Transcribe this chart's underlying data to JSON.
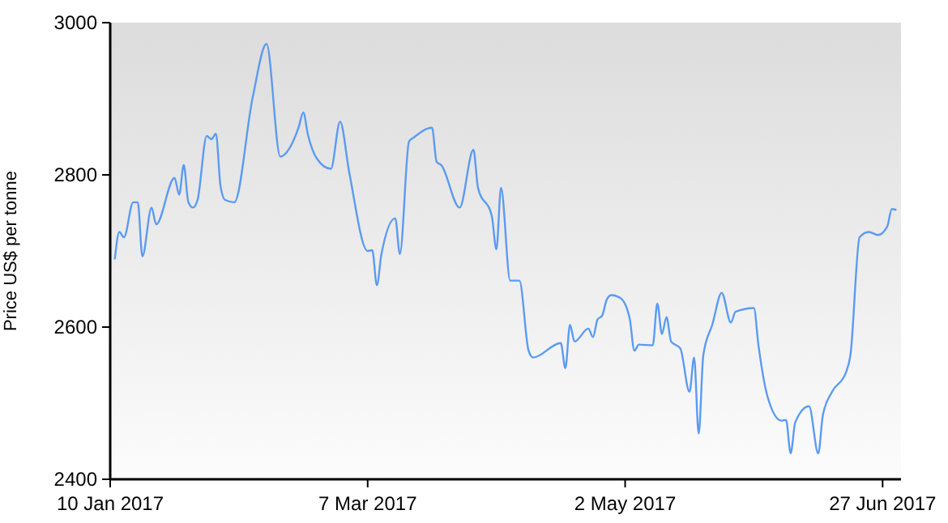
{
  "chart_data": {
    "type": "line",
    "ylabel": "Price US$ per tonne",
    "x": [
      "2017-01-11",
      "2017-01-12",
      "2017-01-13",
      "2017-01-15",
      "2017-01-16",
      "2017-01-17",
      "2017-01-19",
      "2017-01-20",
      "2017-01-24",
      "2017-01-25",
      "2017-01-26",
      "2017-01-27",
      "2017-01-28",
      "2017-01-29",
      "2017-01-31",
      "2017-02-01",
      "2017-02-02",
      "2017-02-03",
      "2017-02-04",
      "2017-02-06",
      "2017-02-10",
      "2017-02-13",
      "2017-02-16",
      "2017-02-18",
      "2017-02-20",
      "2017-02-21",
      "2017-02-22",
      "2017-02-24",
      "2017-02-27",
      "2017-03-01",
      "2017-03-03",
      "2017-03-07",
      "2017-03-08",
      "2017-03-09",
      "2017-03-10",
      "2017-03-13",
      "2017-03-14",
      "2017-03-16",
      "2017-03-17",
      "2017-03-21",
      "2017-03-22",
      "2017-03-23",
      "2017-03-27",
      "2017-03-30",
      "2017-03-31",
      "2017-04-03",
      "2017-04-04",
      "2017-04-05",
      "2017-04-07",
      "2017-04-09",
      "2017-04-11",
      "2017-04-12",
      "2017-04-18",
      "2017-04-19",
      "2017-04-20",
      "2017-04-21",
      "2017-04-24",
      "2017-04-25",
      "2017-04-26",
      "2017-04-27",
      "2017-04-28",
      "2017-04-29",
      "2017-05-01",
      "2017-05-03",
      "2017-05-04",
      "2017-05-05",
      "2017-05-08",
      "2017-05-09",
      "2017-05-10",
      "2017-05-11",
      "2017-05-12",
      "2017-05-14",
      "2017-05-16",
      "2017-05-17",
      "2017-05-18",
      "2017-05-19",
      "2017-05-21",
      "2017-05-23",
      "2017-05-25",
      "2017-05-26",
      "2017-05-30",
      "2017-05-31",
      "2017-06-02",
      "2017-06-05",
      "2017-06-06",
      "2017-06-07",
      "2017-06-08",
      "2017-06-11",
      "2017-06-13",
      "2017-06-14",
      "2017-06-16",
      "2017-06-19",
      "2017-06-20",
      "2017-06-22",
      "2017-06-24",
      "2017-06-26",
      "2017-06-28",
      "2017-06-29",
      "2017-06-30"
    ],
    "series": [
      {
        "color": "#5b9bf0",
        "values": [
          2689,
          2725,
          2718,
          2764,
          2764,
          2693,
          2757,
          2735,
          2796,
          2774,
          2813,
          2764,
          2757,
          2767,
          2851,
          2847,
          2854,
          2785,
          2767,
          2764,
          2902,
          2972,
          2824,
          2835,
          2863,
          2882,
          2853,
          2821,
          2808,
          2870,
          2803,
          2700,
          2701,
          2655,
          2696,
          2743,
          2696,
          2844,
          2849,
          2862,
          2817,
          2813,
          2757,
          2833,
          2783,
          2746,
          2702,
          2783,
          2661,
          2661,
          2569,
          2560,
          2579,
          2546,
          2603,
          2581,
          2598,
          2587,
          2610,
          2615,
          2636,
          2642,
          2638,
          2611,
          2569,
          2577,
          2576,
          2631,
          2591,
          2613,
          2581,
          2572,
          2515,
          2560,
          2460,
          2563,
          2604,
          2645,
          2606,
          2620,
          2625,
          2576,
          2508,
          2477,
          2478,
          2434,
          2475,
          2496,
          2434,
          2484,
          2515,
          2540,
          2563,
          2718,
          2725,
          2721,
          2732,
          2755,
          2754
        ]
      }
    ],
    "xlim": [
      "2017-01-10",
      "2017-07-01"
    ],
    "xticks": [
      {
        "value": "2017-01-10",
        "label": "10 Jan 2017"
      },
      {
        "value": "2017-03-07",
        "label": "7 Mar 2017"
      },
      {
        "value": "2017-05-02",
        "label": "2 May 2017"
      },
      {
        "value": "2017-06-27",
        "label": "27 Jun 2017"
      }
    ],
    "ylim": [
      2400,
      3000
    ],
    "yticks": [
      2400,
      2600,
      2800,
      3000
    ],
    "grid": false,
    "marker": "none",
    "line_style": "solid"
  }
}
